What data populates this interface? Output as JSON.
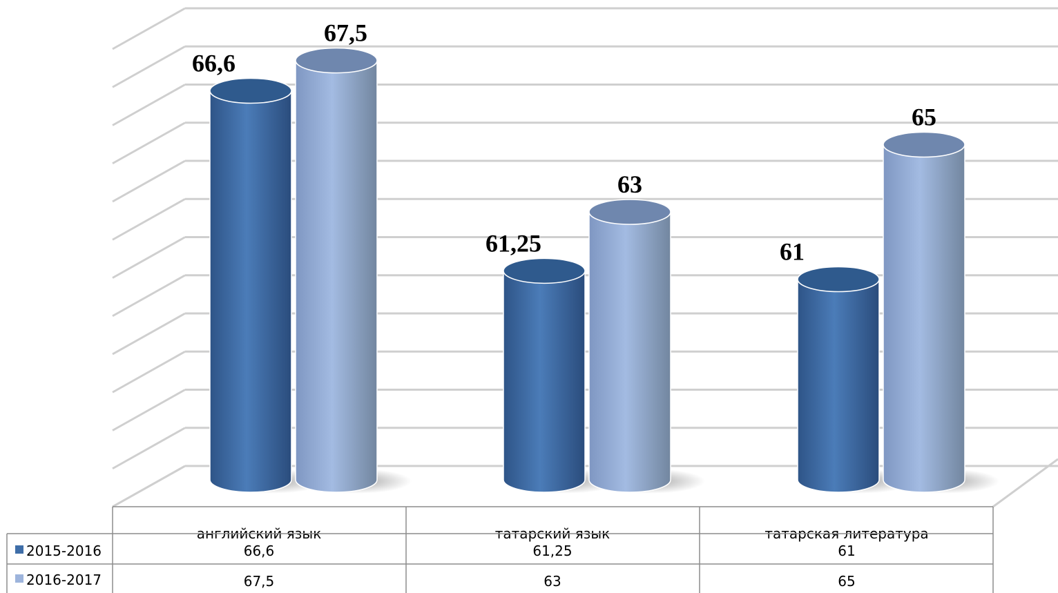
{
  "chart_data": {
    "type": "bar",
    "style": "3d-cylinder",
    "categories": [
      "английский язык",
      "татарский язык",
      "татарская литература"
    ],
    "series": [
      {
        "name": "2015-2016",
        "values": [
          66.6,
          61.25,
          61
        ],
        "labels": [
          "66,6",
          "61,25",
          "61"
        ],
        "color": "#4675AE"
      },
      {
        "name": "2016-2017",
        "values": [
          67.5,
          63,
          65
        ],
        "labels": [
          "67,5",
          "63",
          "65"
        ],
        "color": "#9DB4DC"
      }
    ],
    "ylim": [
      55,
      68.6
    ],
    "grid": true,
    "legend": "data-table-bottom",
    "data_table": true
  }
}
